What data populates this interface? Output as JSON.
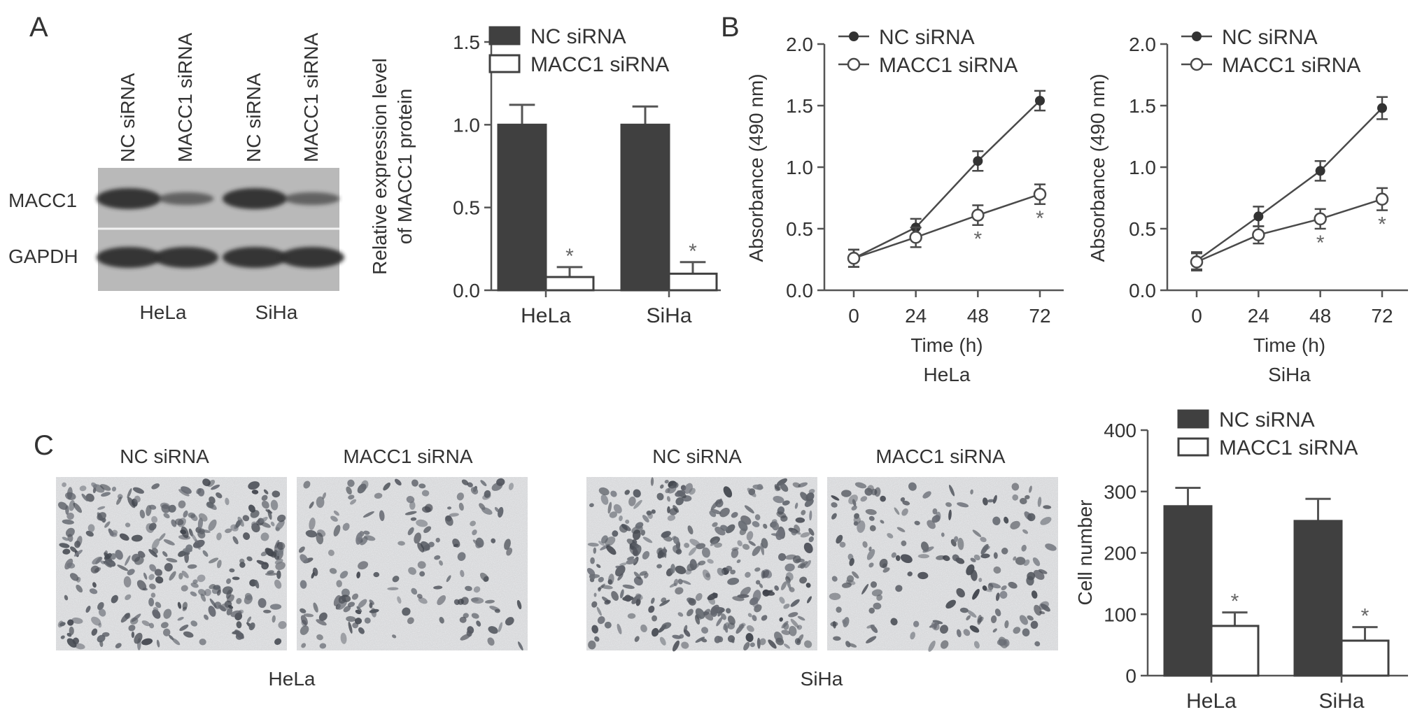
{
  "panel_labels": [
    "A",
    "B",
    "C"
  ],
  "colors": {
    "nc": "#404040",
    "macc1": "#ffffff",
    "axis": "#555555",
    "text": "#333333"
  },
  "western_blot": {
    "lane_labels": [
      "NC siRNA",
      "MACC1 siRNA",
      "NC siRNA",
      "MACC1 siRNA"
    ],
    "row_labels": [
      "MACC1",
      "GAPDH"
    ],
    "cell_line_labels": [
      "HeLa",
      "SiHa"
    ],
    "band_intensity": {
      "MACC1": [
        1.0,
        0.35,
        1.0,
        0.35
      ],
      "GAPDH": [
        1.0,
        1.0,
        1.0,
        1.0
      ]
    }
  },
  "micrographs": {
    "groups": [
      {
        "cell_line": "HeLa",
        "conditions": [
          "NC siRNA",
          "MACC1 siRNA"
        ]
      },
      {
        "cell_line": "SiHa",
        "conditions": [
          "NC siRNA",
          "MACC1 siRNA"
        ]
      }
    ]
  },
  "chart_data": [
    {
      "id": "A-bar",
      "type": "bar",
      "categories": [
        "HeLa",
        "SiHa"
      ],
      "series": [
        {
          "name": "NC siRNA",
          "values": [
            1.0,
            1.0
          ],
          "errors": [
            0.12,
            0.11
          ]
        },
        {
          "name": "MACC1 siRNA",
          "values": [
            0.08,
            0.1
          ],
          "errors": [
            0.06,
            0.07
          ]
        }
      ],
      "significance": [
        "",
        "*",
        "",
        "*"
      ],
      "ylabel": [
        "Relative expression level",
        "of MACC1 protein"
      ],
      "ylim": [
        0,
        1.5
      ],
      "yticks": [
        0.0,
        0.5,
        1.0,
        1.5
      ],
      "ytick_labels": [
        "0.0",
        "0.5",
        "1.0",
        "1.5"
      ],
      "legend": "top-left",
      "grid": false
    },
    {
      "id": "B-HeLa",
      "type": "line",
      "x": [
        0,
        24,
        48,
        72
      ],
      "series": [
        {
          "name": "NC siRNA",
          "values": [
            0.26,
            0.51,
            1.05,
            1.54
          ],
          "errors": [
            0.07,
            0.07,
            0.08,
            0.08
          ]
        },
        {
          "name": "MACC1 siRNA",
          "values": [
            0.26,
            0.43,
            0.61,
            0.78
          ],
          "errors": [
            0.07,
            0.08,
            0.08,
            0.08
          ]
        }
      ],
      "significance_x": [
        48,
        72
      ],
      "significance_mark": "*",
      "xlabel": "Time (h)",
      "sublabel": "HeLa",
      "ylabel": "Absorbance (490 nm)",
      "ylim": [
        0,
        2.0
      ],
      "yticks": [
        0.0,
        0.5,
        1.0,
        1.5,
        2.0
      ],
      "ytick_labels": [
        "0.0",
        "0.5",
        "1.0",
        "1.5",
        "2.0"
      ],
      "xticks": [
        0,
        24,
        48,
        72
      ],
      "xtick_labels": [
        "0",
        "24",
        "48",
        "72"
      ],
      "legend": "top-left",
      "grid": false
    },
    {
      "id": "B-SiHa",
      "type": "line",
      "x": [
        0,
        24,
        48,
        72
      ],
      "series": [
        {
          "name": "NC siRNA",
          "values": [
            0.24,
            0.6,
            0.97,
            1.48
          ],
          "errors": [
            0.07,
            0.08,
            0.08,
            0.09
          ]
        },
        {
          "name": "MACC1 siRNA",
          "values": [
            0.23,
            0.45,
            0.58,
            0.74
          ],
          "errors": [
            0.07,
            0.07,
            0.08,
            0.09
          ]
        }
      ],
      "significance_x": [
        48,
        72
      ],
      "significance_mark": "*",
      "xlabel": "Time (h)",
      "sublabel": "SiHa",
      "ylabel": "Absorbance (490 nm)",
      "ylim": [
        0,
        2.0
      ],
      "yticks": [
        0.0,
        0.5,
        1.0,
        1.5,
        2.0
      ],
      "ytick_labels": [
        "0.0",
        "0.5",
        "1.0",
        "1.5",
        "2.0"
      ],
      "xticks": [
        0,
        24,
        48,
        72
      ],
      "xtick_labels": [
        "0",
        "24",
        "48",
        "72"
      ],
      "legend": "top-left",
      "grid": false
    },
    {
      "id": "C-bar",
      "type": "bar",
      "categories": [
        "HeLa",
        "SiHa"
      ],
      "series": [
        {
          "name": "NC siRNA",
          "values": [
            276,
            252
          ],
          "errors": [
            30,
            36
          ]
        },
        {
          "name": "MACC1 siRNA",
          "values": [
            81,
            57
          ],
          "errors": [
            22,
            22
          ]
        }
      ],
      "significance": [
        "",
        "*",
        "",
        "*"
      ],
      "ylabel": "Cell number",
      "ylim": [
        0,
        400
      ],
      "yticks": [
        0,
        100,
        200,
        300,
        400
      ],
      "ytick_labels": [
        "0",
        "100",
        "200",
        "300",
        "400"
      ],
      "legend": "top-left",
      "grid": false
    }
  ]
}
